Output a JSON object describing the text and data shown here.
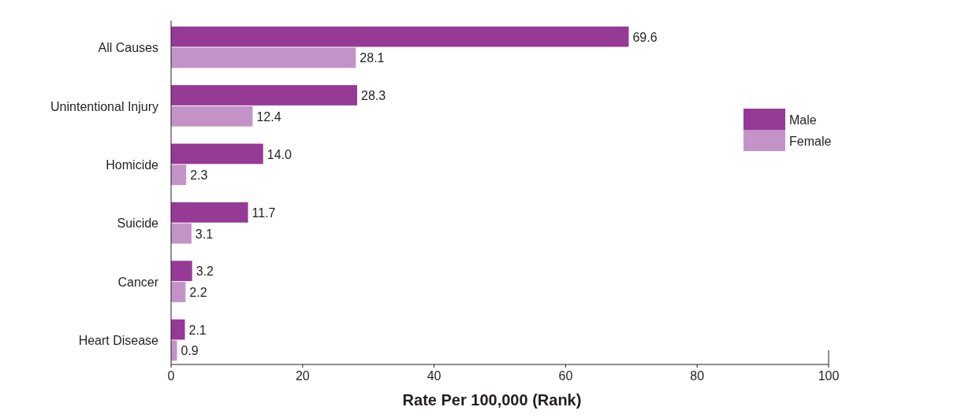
{
  "chart_data": {
    "type": "bar",
    "orientation": "horizontal",
    "xlabel": "Rate Per 100,000 (Rank)",
    "categories": [
      "All Causes",
      "Unintentional Injury",
      "Homicide",
      "Suicide",
      "Cancer",
      "Heart Disease"
    ],
    "series": [
      {
        "name": "Male",
        "color": "#963a96",
        "values": [
          69.6,
          28.3,
          14.0,
          11.7,
          3.2,
          2.1
        ],
        "value_labels": [
          "69.6",
          "28.3",
          "14.0",
          "11.7",
          "3.2",
          "2.1"
        ]
      },
      {
        "name": "Female",
        "color": "#c393c8",
        "values": [
          28.1,
          12.4,
          2.3,
          3.1,
          2.2,
          0.9
        ],
        "value_labels": [
          "28.1",
          "12.4",
          "2.3",
          "3.1",
          "2.2",
          "0.9"
        ]
      }
    ],
    "xlim": [
      0,
      100
    ],
    "xticks": [
      0,
      20,
      40,
      60,
      80,
      100
    ],
    "grid": false,
    "legend": "right"
  }
}
